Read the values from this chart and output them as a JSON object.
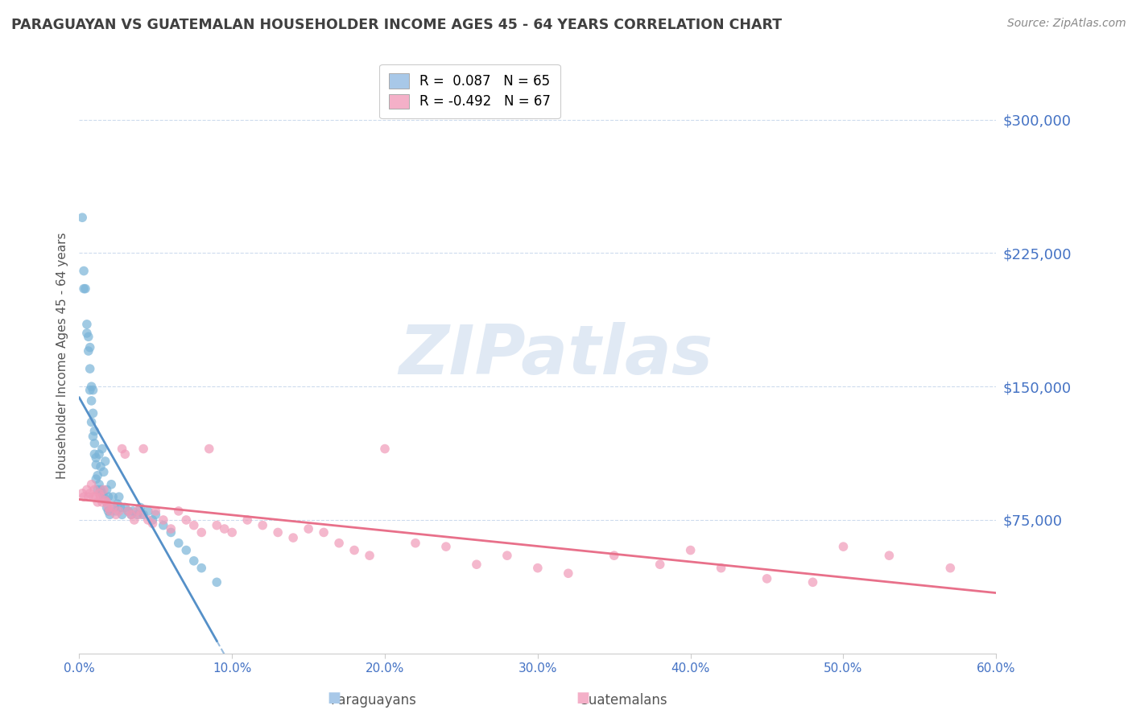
{
  "title": "PARAGUAYAN VS GUATEMALAN HOUSEHOLDER INCOME AGES 45 - 64 YEARS CORRELATION CHART",
  "source": "Source: ZipAtlas.com",
  "ylabel": "Householder Income Ages 45 - 64 years",
  "xlim": [
    0.0,
    0.6
  ],
  "ylim": [
    0,
    335000
  ],
  "yticks": [
    75000,
    150000,
    225000,
    300000
  ],
  "ytick_labels": [
    "$75,000",
    "$150,000",
    "$225,000",
    "$300,000"
  ],
  "xtick_vals": [
    0.0,
    0.1,
    0.2,
    0.3,
    0.4,
    0.5,
    0.6
  ],
  "xtick_labels": [
    "0.0%",
    "10.0%",
    "20.0%",
    "30.0%",
    "40.0%",
    "50.0%",
    "60.0%"
  ],
  "legend_blue_label": "R =  0.087   N = 65",
  "legend_pink_label": "R = -0.492   N = 67",
  "legend_blue_color": "#a8c8e8",
  "legend_pink_color": "#f4b0c8",
  "paraguayan_color": "#7ab4d8",
  "guatemalan_color": "#f09ab8",
  "trend_par_color": "#5590c8",
  "trend_gua_color": "#e8708a",
  "axis_label_color": "#4472c4",
  "grid_color": "#c8d8ec",
  "title_color": "#404040",
  "source_color": "#888888",
  "watermark_color": "#c8d8ec",
  "bottom_label_color": "#555555",
  "paraguayan_x": [
    0.002,
    0.003,
    0.003,
    0.004,
    0.005,
    0.005,
    0.006,
    0.006,
    0.007,
    0.007,
    0.007,
    0.008,
    0.008,
    0.008,
    0.009,
    0.009,
    0.009,
    0.01,
    0.01,
    0.01,
    0.011,
    0.011,
    0.011,
    0.012,
    0.012,
    0.013,
    0.013,
    0.014,
    0.014,
    0.015,
    0.015,
    0.016,
    0.016,
    0.017,
    0.017,
    0.018,
    0.018,
    0.019,
    0.019,
    0.02,
    0.021,
    0.022,
    0.023,
    0.024,
    0.025,
    0.026,
    0.027,
    0.028,
    0.03,
    0.032,
    0.034,
    0.035,
    0.038,
    0.04,
    0.042,
    0.045,
    0.048,
    0.05,
    0.055,
    0.06,
    0.065,
    0.07,
    0.075,
    0.08,
    0.09
  ],
  "paraguayan_y": [
    245000,
    215000,
    205000,
    205000,
    185000,
    180000,
    178000,
    170000,
    172000,
    160000,
    148000,
    150000,
    142000,
    130000,
    148000,
    135000,
    122000,
    125000,
    118000,
    112000,
    110000,
    106000,
    98000,
    100000,
    92000,
    112000,
    95000,
    105000,
    92000,
    115000,
    90000,
    102000,
    88000,
    108000,
    86000,
    92000,
    82000,
    88000,
    80000,
    78000,
    95000,
    88000,
    82000,
    80000,
    84000,
    88000,
    82000,
    78000,
    82000,
    80000,
    78000,
    80000,
    78000,
    82000,
    78000,
    80000,
    75000,
    78000,
    72000,
    68000,
    62000,
    58000,
    52000,
    48000,
    40000
  ],
  "guatemalan_x": [
    0.002,
    0.003,
    0.005,
    0.006,
    0.007,
    0.008,
    0.009,
    0.01,
    0.011,
    0.012,
    0.013,
    0.014,
    0.015,
    0.016,
    0.017,
    0.018,
    0.019,
    0.02,
    0.022,
    0.024,
    0.026,
    0.028,
    0.03,
    0.032,
    0.034,
    0.036,
    0.038,
    0.04,
    0.042,
    0.045,
    0.048,
    0.05,
    0.055,
    0.06,
    0.065,
    0.07,
    0.075,
    0.08,
    0.085,
    0.09,
    0.095,
    0.1,
    0.11,
    0.12,
    0.13,
    0.14,
    0.15,
    0.16,
    0.17,
    0.18,
    0.19,
    0.2,
    0.22,
    0.24,
    0.26,
    0.28,
    0.3,
    0.32,
    0.35,
    0.38,
    0.4,
    0.42,
    0.45,
    0.48,
    0.5,
    0.53,
    0.57
  ],
  "guatemalan_y": [
    90000,
    88000,
    92000,
    88000,
    90000,
    95000,
    88000,
    92000,
    88000,
    85000,
    90000,
    88000,
    85000,
    92000,
    86000,
    85000,
    82000,
    80000,
    82000,
    78000,
    80000,
    115000,
    112000,
    80000,
    78000,
    75000,
    80000,
    78000,
    115000,
    75000,
    73000,
    80000,
    75000,
    70000,
    80000,
    75000,
    72000,
    68000,
    115000,
    72000,
    70000,
    68000,
    75000,
    72000,
    68000,
    65000,
    70000,
    68000,
    62000,
    58000,
    55000,
    115000,
    62000,
    60000,
    50000,
    55000,
    48000,
    45000,
    55000,
    50000,
    58000,
    48000,
    42000,
    40000,
    60000,
    55000,
    48000
  ]
}
